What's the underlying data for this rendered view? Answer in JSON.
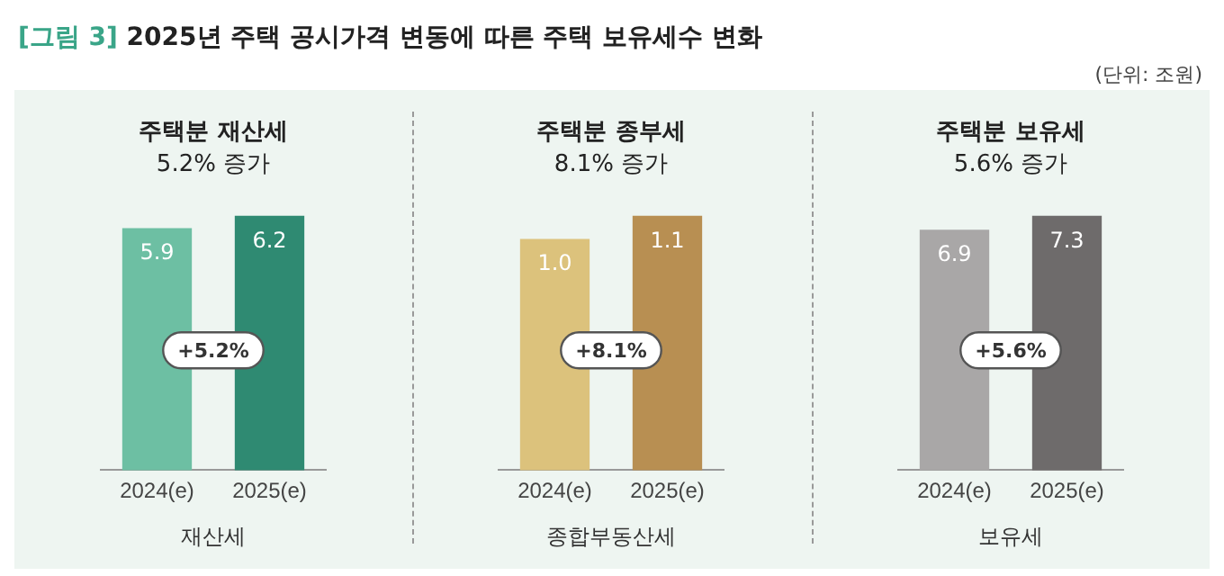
{
  "chart_data": [
    {
      "type": "bar",
      "title": "주택분 재산세",
      "subtitle": "5.2% 증가",
      "xlabel": "재산세",
      "categories": [
        "2024(e)",
        "2025(e)"
      ],
      "series": [
        {
          "values": [
            5.9,
            6.2
          ],
          "colors": [
            "#6dbfa3",
            "#2f8a72"
          ]
        }
      ],
      "data_labels": true,
      "grid": false,
      "tick_labels": "x",
      "legend": false,
      "annotations": [
        "[그림 3] 2025년 주택 공시가격 변동에 따른 주택 보유세수 변화",
        "(단위: 조원)",
        "+5.2%"
      ]
    },
    {
      "type": "bar",
      "title": "주택분 종부세",
      "subtitle": "8.1% 증가",
      "xlabel": "종합부동산세",
      "categories": [
        "2024(e)",
        "2025(e)"
      ],
      "series": [
        {
          "values": [
            1.0,
            1.1
          ],
          "value_labels": [
            "1.0",
            "1.1"
          ],
          "colors": [
            "#dcc27c",
            "#b88f52"
          ]
        }
      ],
      "grid": false,
      "tick_labels": "x",
      "legend": false,
      "annotations": [
        "+8.1%"
      ]
    },
    {
      "type": "bar",
      "title": "주택분 보유세",
      "subtitle": "5.6% 증가",
      "xlabel": "보유세",
      "categories": [
        "2024(e)",
        "2025(e)"
      ],
      "series": [
        {
          "values": [
            6.9,
            7.3
          ],
          "colors": [
            "#a9a7a7",
            "#6e6b6b"
          ]
        }
      ],
      "data_labels": true,
      "grid": false,
      "tick_labels": "x",
      "legend": false,
      "annotations": [
        "+5.6%"
      ]
    }
  ]
}
